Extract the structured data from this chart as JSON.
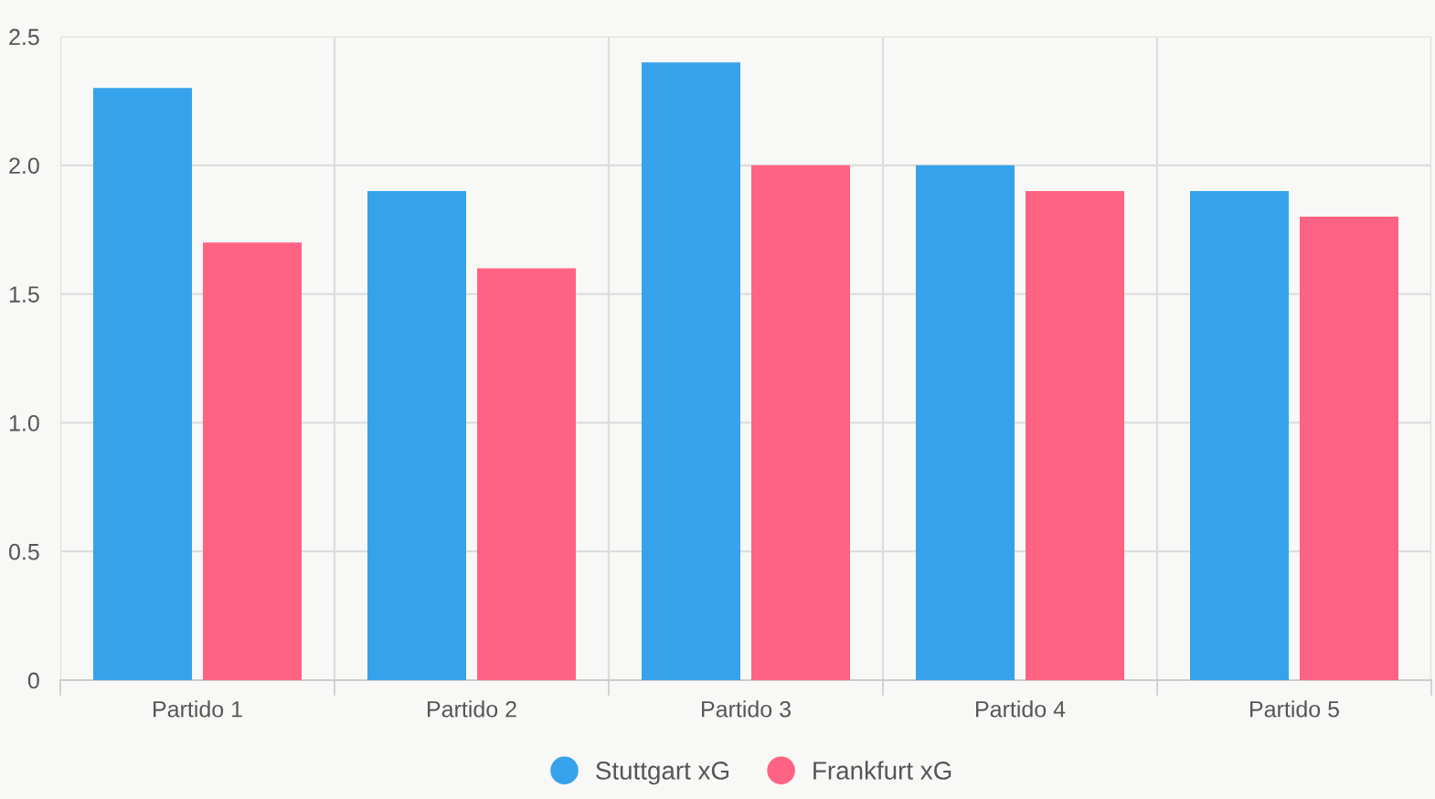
{
  "chart_data": {
    "type": "bar",
    "categories": [
      "Partido 1",
      "Partido 2",
      "Partido 3",
      "Partido 4",
      "Partido 5"
    ],
    "series": [
      {
        "name": "Stuttgart xG",
        "color": "#36a2eb",
        "values": [
          2.3,
          1.9,
          2.4,
          2.0,
          1.9
        ]
      },
      {
        "name": "Frankfurt xG",
        "color": "#ff6384",
        "values": [
          1.7,
          1.6,
          2.0,
          1.9,
          1.8
        ]
      }
    ],
    "ylim": [
      0,
      2.5
    ],
    "yticks": [
      {
        "value": 0,
        "label": "0"
      },
      {
        "value": 0.5,
        "label": "0.5"
      },
      {
        "value": 1,
        "label": "1.0"
      },
      {
        "value": 1.5,
        "label": "1.5"
      },
      {
        "value": 2,
        "label": "2.0"
      },
      {
        "value": 2.5,
        "label": "2.5"
      }
    ],
    "grid": true,
    "legend": "bottom"
  }
}
